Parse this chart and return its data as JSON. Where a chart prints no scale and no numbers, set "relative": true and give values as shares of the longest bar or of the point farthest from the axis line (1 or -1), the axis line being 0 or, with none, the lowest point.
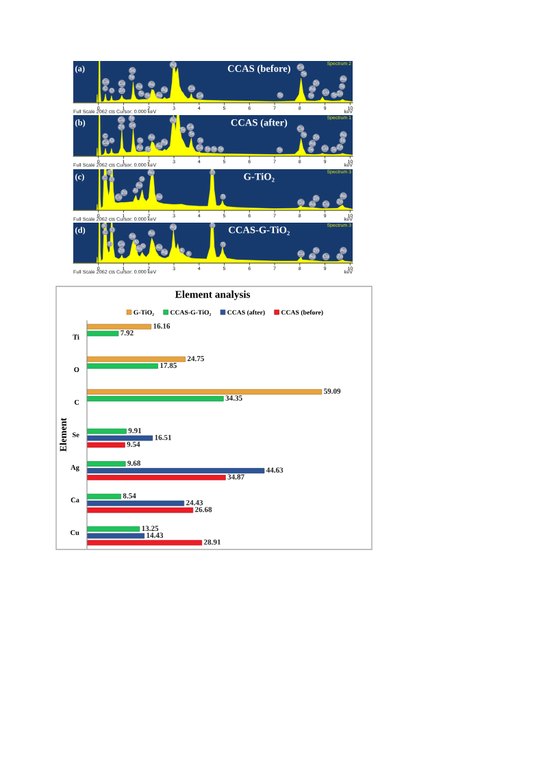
{
  "chart_data": [
    {
      "type": "area",
      "title": "CCAS (before)",
      "xlabel": "keV",
      "relative": true,
      "color": "#ffff00",
      "xlim": [
        -1.0,
        10.1
      ],
      "xticks": [
        0,
        1,
        2,
        3,
        4,
        5,
        6,
        7,
        8,
        9,
        10
      ],
      "tick_labels": "x",
      "x": [
        -1.0,
        -0.07,
        -0.05,
        -0.03,
        0.0,
        0.01,
        0.02,
        0.06,
        0.07,
        0.1,
        0.2,
        0.24,
        0.28,
        0.32,
        0.4,
        0.48,
        0.52,
        0.56,
        0.65,
        0.8,
        0.88,
        0.93,
        0.98,
        1.1,
        1.3,
        1.34,
        1.38,
        1.43,
        1.5,
        1.6,
        1.75,
        1.95,
        2.05,
        2.12,
        2.2,
        2.27,
        2.4,
        2.55,
        2.63,
        2.7,
        2.85,
        2.93,
        2.98,
        3.07,
        3.15,
        3.22,
        3.3,
        3.35,
        3.42,
        3.55,
        3.64,
        3.69,
        3.74,
        3.85,
        4.01,
        4.3,
        5.0,
        6.0,
        7.0,
        7.8,
        7.97,
        8.05,
        8.13,
        8.25,
        8.6,
        8.82,
        8.9,
        8.98,
        9.3,
        9.6,
        9.7,
        9.8,
        10.1
      ],
      "values": [
        0,
        0,
        0.2,
        0,
        0,
        0.3,
        1,
        1,
        0.3,
        0.02,
        0.03,
        0.08,
        0.21,
        0.06,
        0.04,
        0.06,
        0.17,
        0.06,
        0.05,
        0.06,
        0.1,
        0.18,
        0.1,
        0.07,
        0.08,
        0.2,
        0.5,
        0.2,
        0.1,
        0.07,
        0.08,
        0.08,
        0.15,
        0.32,
        0.3,
        0.16,
        0.1,
        0.09,
        0.13,
        0.09,
        0.12,
        0.5,
        1,
        0.7,
        0.83,
        0.4,
        0.28,
        0.25,
        0.18,
        0.1,
        0.12,
        0.22,
        0.12,
        0.08,
        0.07,
        0.06,
        0.05,
        0.04,
        0.03,
        0.04,
        0.2,
        0.59,
        0.25,
        0.05,
        0.04,
        0.06,
        0.14,
        0.06,
        0.04,
        0.05,
        0.08,
        0.05,
        0.03
      ],
      "annotations": [
        "(a)",
        "Spectrum 2",
        "Full Scale 2062 cts Cursor: 0.000 keV",
        {
          "text": "Ca",
          "x": 0.29,
          "y": 0.5
        },
        {
          "text": "C",
          "x": 0.27,
          "y": 0.34
        },
        {
          "text": "O",
          "x": 0.53,
          "y": 0.29
        },
        {
          "text": "Cu",
          "x": 0.93,
          "y": 0.46
        },
        {
          "text": "Zn",
          "x": 0.93,
          "y": 0.29
        },
        {
          "text": "Se",
          "x": 1.35,
          "y": 0.77
        },
        {
          "text": "Te",
          "x": 1.32,
          "y": 0.61
        },
        {
          "text": "Au",
          "x": 1.62,
          "y": 0.39
        },
        {
          "text": "Te",
          "x": 1.7,
          "y": 0.22
        },
        {
          "text": "Te",
          "x": 1.95,
          "y": 0.17
        },
        {
          "text": "Au",
          "x": 2.11,
          "y": 0.44
        },
        {
          "text": "Au",
          "x": 2.41,
          "y": 0.18
        },
        {
          "text": "Ag",
          "x": 2.62,
          "y": 0.31
        },
        {
          "text": "Ag",
          "x": 2.97,
          "y": 0.91
        },
        {
          "text": "Ca",
          "x": 3.7,
          "y": 0.34
        },
        {
          "text": "Ca",
          "x": 4.03,
          "y": 0.17
        },
        {
          "text": "Te",
          "x": 7.22,
          "y": 0.18
        },
        {
          "text": "Cu",
          "x": 8.03,
          "y": 0.85
        },
        {
          "text": "Te",
          "x": 8.16,
          "y": 0.69
        },
        {
          "text": "Zn",
          "x": 8.65,
          "y": 0.47
        },
        {
          "text": "Au",
          "x": 8.5,
          "y": 0.33
        },
        {
          "text": "Te",
          "x": 8.45,
          "y": 0.17
        },
        {
          "text": "Cu",
          "x": 9.03,
          "y": 0.25
        },
        {
          "text": "Te",
          "x": 9.36,
          "y": 0.18
        },
        {
          "text": "Zn",
          "x": 9.59,
          "y": 0.22
        },
        {
          "text": "Te",
          "x": 9.68,
          "y": 0.39
        },
        {
          "text": "Au",
          "x": 9.73,
          "y": 0.57
        }
      ]
    },
    {
      "type": "area",
      "title": "CCAS (after)",
      "xlabel": "keV",
      "relative": true,
      "color": "#ffff00",
      "xlim": [
        -1.0,
        10.1
      ],
      "xticks": [
        0,
        1,
        2,
        3,
        4,
        5,
        6,
        7,
        8,
        9,
        10
      ],
      "tick_labels": "x",
      "x": [
        -1.0,
        -0.07,
        -0.05,
        -0.03,
        0.0,
        0.01,
        0.02,
        0.06,
        0.07,
        0.1,
        0.2,
        0.24,
        0.28,
        0.32,
        0.4,
        0.48,
        0.52,
        0.56,
        0.65,
        0.8,
        0.88,
        0.93,
        0.98,
        1.1,
        1.3,
        1.34,
        1.38,
        1.43,
        1.5,
        1.6,
        1.75,
        1.95,
        2.05,
        2.12,
        2.2,
        2.27,
        2.4,
        2.55,
        2.63,
        2.7,
        2.85,
        2.92,
        2.98,
        3.07,
        3.12,
        3.2,
        3.26,
        3.3,
        3.38,
        3.48,
        3.6,
        3.64,
        3.69,
        3.74,
        3.85,
        3.95,
        4.01,
        4.08,
        4.5,
        5.0,
        6.0,
        7.0,
        7.8,
        7.97,
        8.05,
        8.13,
        8.25,
        8.6,
        8.82,
        8.9,
        8.98,
        9.3,
        9.6,
        9.7,
        9.8,
        10.1
      ],
      "values": [
        0,
        0,
        0.2,
        0,
        0,
        0.3,
        1,
        1,
        0.3,
        0.02,
        0.04,
        0.08,
        0.19,
        0.07,
        0.05,
        0.08,
        0.19,
        0.08,
        0.06,
        0.07,
        0.2,
        0.63,
        0.2,
        0.09,
        0.1,
        0.3,
        0.67,
        0.3,
        0.12,
        0.1,
        0.11,
        0.12,
        0.2,
        0.36,
        0.32,
        0.2,
        0.14,
        0.13,
        0.17,
        0.14,
        0.25,
        0.7,
        1,
        0.6,
        1,
        1,
        0.6,
        0.45,
        0.36,
        0.22,
        0.2,
        0.3,
        0.44,
        0.25,
        0.12,
        0.1,
        0.11,
        0.08,
        0.07,
        0.06,
        0.05,
        0.04,
        0.05,
        0.15,
        0.43,
        0.2,
        0.05,
        0.04,
        0.05,
        0.07,
        0.05,
        0.04,
        0.05,
        0.07,
        0.05,
        0.03
      ],
      "annotations": [
        "(b)",
        "Spectrum 1",
        "Full Scale 2062 cts Cursor: 0.000 keV",
        {
          "text": "C",
          "x": 0.27,
          "y": 0.49
        },
        {
          "text": "Ca",
          "x": 0.29,
          "y": 0.33
        },
        {
          "text": "O",
          "x": 0.53,
          "y": 0.38
        },
        {
          "text": "Cu",
          "x": 0.91,
          "y": 0.88
        },
        {
          "text": "Zn",
          "x": 0.91,
          "y": 0.71
        },
        {
          "text": "Te",
          "x": 1.32,
          "y": 0.92
        },
        {
          "text": "Se",
          "x": 1.35,
          "y": 0.75
        },
        {
          "text": "Te",
          "x": 1.66,
          "y": 0.38
        },
        {
          "text": "Au",
          "x": 1.64,
          "y": 0.21
        },
        {
          "text": "Te",
          "x": 1.97,
          "y": 0.17
        },
        {
          "text": "Au",
          "x": 2.11,
          "y": 0.46
        },
        {
          "text": "Au",
          "x": 2.41,
          "y": 0.25
        },
        {
          "text": "Ag",
          "x": 2.62,
          "y": 0.34
        },
        {
          "text": "Ag",
          "x": 2.97,
          "y": 0.88
        },
        {
          "text": "Te",
          "x": 3.35,
          "y": 0.64
        },
        {
          "text": "Ca",
          "x": 3.65,
          "y": 0.71
        },
        {
          "text": "Te",
          "x": 3.7,
          "y": 0.54
        },
        {
          "text": "Te",
          "x": 4.05,
          "y": 0.38
        },
        {
          "text": "Ca",
          "x": 4.02,
          "y": 0.21
        },
        {
          "text": "Te",
          "x": 4.34,
          "y": 0.17
        },
        {
          "text": "Te",
          "x": 4.59,
          "y": 0.17
        },
        {
          "text": "Te",
          "x": 4.86,
          "y": 0.17
        },
        {
          "text": "Te",
          "x": 7.2,
          "y": 0.15
        },
        {
          "text": "Cu",
          "x": 8.03,
          "y": 0.67
        },
        {
          "text": "Te",
          "x": 8.16,
          "y": 0.52
        },
        {
          "text": "Zn",
          "x": 8.65,
          "y": 0.46
        },
        {
          "text": "Au",
          "x": 8.5,
          "y": 0.31
        },
        {
          "text": "Te",
          "x": 8.44,
          "y": 0.16
        },
        {
          "text": "Cu",
          "x": 9.0,
          "y": 0.19
        },
        {
          "text": "Te",
          "x": 9.35,
          "y": 0.16
        },
        {
          "text": "Zn",
          "x": 9.59,
          "y": 0.22
        },
        {
          "text": "Te",
          "x": 9.7,
          "y": 0.38
        },
        {
          "text": "Au",
          "x": 9.73,
          "y": 0.52
        }
      ]
    },
    {
      "type": "area",
      "title": "G-TiO₂",
      "xlabel": "keV",
      "relative": true,
      "color": "#ffff00",
      "xlim": [
        -1.0,
        10.1
      ],
      "xticks": [
        0,
        1,
        2,
        3,
        4,
        5,
        6,
        7,
        8,
        9,
        10
      ],
      "tick_labels": "x",
      "x": [
        -1.0,
        -0.07,
        -0.05,
        -0.03,
        0.0,
        0.01,
        0.02,
        0.06,
        0.07,
        0.1,
        0.18,
        0.23,
        0.25,
        0.31,
        0.34,
        0.4,
        0.45,
        0.49,
        0.51,
        0.56,
        0.59,
        0.65,
        0.75,
        0.9,
        1.02,
        1.2,
        1.38,
        1.44,
        1.49,
        1.54,
        1.62,
        1.68,
        1.74,
        1.8,
        1.9,
        2.0,
        2.06,
        2.12,
        2.18,
        2.24,
        2.32,
        2.4,
        2.6,
        3.0,
        3.3,
        3.5,
        4.0,
        4.35,
        4.44,
        4.48,
        4.56,
        4.6,
        4.68,
        4.8,
        4.88,
        4.93,
        4.98,
        5.1,
        5.5,
        6.0,
        7.0,
        7.9,
        8.0,
        8.05,
        8.1,
        8.6,
        8.9,
        9.5,
        9.62,
        9.7,
        9.78,
        10.1
      ],
      "values": [
        0,
        0,
        0.15,
        0,
        0,
        0.3,
        1,
        1,
        0.3,
        0.05,
        0.1,
        1,
        1,
        1,
        0.6,
        0.35,
        0.5,
        1,
        1,
        1,
        0.5,
        0.2,
        0.18,
        0.19,
        0.19,
        0.2,
        0.21,
        0.3,
        0.37,
        0.25,
        0.24,
        0.35,
        0.5,
        0.3,
        0.22,
        0.3,
        0.7,
        0.94,
        0.85,
        0.4,
        0.22,
        0.19,
        0.16,
        0.14,
        0.15,
        0.12,
        0.1,
        0.1,
        0.5,
        1,
        1,
        0.5,
        0.12,
        0.11,
        0.15,
        0.24,
        0.14,
        0.09,
        0.07,
        0.06,
        0.04,
        0.05,
        0.09,
        0.11,
        0.08,
        0.06,
        0.04,
        0.05,
        0.1,
        0.13,
        0.07,
        0.03
      ],
      "annotations": [
        "(c)",
        "Spectrum 3",
        "Full Scale 2062 cts Cursor: 0.000 keV",
        {
          "text": "C",
          "x": 0.25,
          "y": 0.79
        },
        {
          "text": "Ti",
          "x": 0.44,
          "y": 0.92
        },
        {
          "text": "O",
          "x": 0.53,
          "y": 0.75
        },
        {
          "text": "Cu",
          "x": 0.8,
          "y": 0.32
        },
        {
          "text": "Zn",
          "x": 1.02,
          "y": 0.43
        },
        {
          "text": "Al",
          "x": 1.47,
          "y": 0.48
        },
        {
          "text": "Au",
          "x": 1.62,
          "y": 0.61
        },
        {
          "text": "Si",
          "x": 1.73,
          "y": 0.76
        },
        {
          "text": "Au",
          "x": 2.09,
          "y": 0.92
        },
        {
          "text": "Au",
          "x": 2.41,
          "y": 0.33
        },
        {
          "text": "Ti",
          "x": 4.53,
          "y": 0.92
        },
        {
          "text": "Ti",
          "x": 4.95,
          "y": 0.33
        },
        {
          "text": "Cu",
          "x": 8.05,
          "y": 0.19
        },
        {
          "text": "Au",
          "x": 8.5,
          "y": 0.15
        },
        {
          "text": "Zn",
          "x": 8.65,
          "y": 0.29
        },
        {
          "text": "Cu",
          "x": 9.04,
          "y": 0.15
        },
        {
          "text": "Zn",
          "x": 9.59,
          "y": 0.21
        },
        {
          "text": "Au",
          "x": 9.73,
          "y": 0.35
        }
      ]
    },
    {
      "type": "area",
      "title": "CCAS-G-TiO₂",
      "xlabel": "keV",
      "relative": true,
      "color": "#ffff00",
      "xlim": [
        -1.0,
        10.1
      ],
      "xticks": [
        0,
        1,
        2,
        3,
        4,
        5,
        6,
        7,
        8,
        9,
        10
      ],
      "tick_labels": "x",
      "x": [
        -1.0,
        -0.07,
        -0.05,
        -0.03,
        0.0,
        0.01,
        0.02,
        0.06,
        0.07,
        0.1,
        0.18,
        0.23,
        0.25,
        0.31,
        0.34,
        0.4,
        0.45,
        0.49,
        0.51,
        0.55,
        0.59,
        0.65,
        0.8,
        0.88,
        0.93,
        0.98,
        1.1,
        1.25,
        1.33,
        1.38,
        1.45,
        1.5,
        1.57,
        1.65,
        1.74,
        1.8,
        1.9,
        2.02,
        2.08,
        2.12,
        2.2,
        2.28,
        2.4,
        2.55,
        2.65,
        2.8,
        2.92,
        2.98,
        3.05,
        3.1,
        3.15,
        3.2,
        3.25,
        3.31,
        3.38,
        3.5,
        3.59,
        3.7,
        3.9,
        4.3,
        4.44,
        4.48,
        4.56,
        4.6,
        4.68,
        4.8,
        4.88,
        4.93,
        4.98,
        5.1,
        5.5,
        6.0,
        7.0,
        7.9,
        8.0,
        8.05,
        8.1,
        8.6,
        8.9,
        9.5,
        9.62,
        9.7,
        9.78,
        10.1
      ],
      "values": [
        0,
        0,
        0.15,
        0,
        0,
        0.3,
        1,
        1,
        0.3,
        0.05,
        0.1,
        1,
        1,
        1,
        0.4,
        0.25,
        0.3,
        0.8,
        1,
        1,
        0.4,
        0.15,
        0.1,
        0.13,
        0.2,
        0.12,
        0.12,
        0.2,
        0.45,
        0.55,
        0.58,
        0.4,
        0.2,
        0.16,
        0.27,
        0.2,
        0.15,
        0.25,
        0.5,
        0.62,
        0.5,
        0.3,
        0.18,
        0.13,
        0.12,
        0.16,
        0.4,
        0.82,
        0.4,
        0.35,
        0.48,
        0.35,
        0.3,
        0.31,
        0.22,
        0.16,
        0.15,
        0.12,
        0.11,
        0.1,
        0.4,
        1,
        1,
        0.4,
        0.15,
        0.15,
        0.25,
        0.4,
        0.25,
        0.12,
        0.08,
        0.07,
        0.05,
        0.05,
        0.12,
        0.15,
        0.08,
        0.06,
        0.04,
        0.04,
        0.06,
        0.08,
        0.05,
        0.03
      ],
      "annotations": [
        "(d)",
        "Spectrum 3",
        "Full Scale 2062 cts Cursor: 0.000 keV",
        {
          "text": "K",
          "x": 0.23,
          "y": 0.92
        },
        {
          "text": "C",
          "x": 0.27,
          "y": 0.76
        },
        {
          "text": "O",
          "x": 0.55,
          "y": 0.82
        },
        {
          "text": "Ti",
          "x": 0.45,
          "y": 0.47
        },
        {
          "text": "Cu",
          "x": 0.91,
          "y": 0.47
        },
        {
          "text": "Zn",
          "x": 0.91,
          "y": 0.31
        },
        {
          "text": "Se",
          "x": 1.35,
          "y": 0.66
        },
        {
          "text": "Al",
          "x": 1.5,
          "y": 0.52
        },
        {
          "text": "Au",
          "x": 1.62,
          "y": 0.36
        },
        {
          "text": "Si",
          "x": 1.77,
          "y": 0.42
        },
        {
          "text": "Au",
          "x": 2.11,
          "y": 0.74
        },
        {
          "text": "Au",
          "x": 2.41,
          "y": 0.39
        },
        {
          "text": "Ag",
          "x": 2.62,
          "y": 0.27
        },
        {
          "text": "Ag",
          "x": 2.97,
          "y": 0.89
        },
        {
          "text": "K",
          "x": 3.32,
          "y": 0.31
        },
        {
          "text": "K",
          "x": 3.59,
          "y": 0.23
        },
        {
          "text": "Ti",
          "x": 4.53,
          "y": 0.93
        },
        {
          "text": "Ti",
          "x": 4.95,
          "y": 0.46
        },
        {
          "text": "Cu",
          "x": 8.05,
          "y": 0.23
        },
        {
          "text": "Au",
          "x": 8.5,
          "y": 0.16
        },
        {
          "text": "Zn",
          "x": 8.65,
          "y": 0.31
        },
        {
          "text": "Cu",
          "x": 9.04,
          "y": 0.16
        },
        {
          "text": "Zn",
          "x": 9.59,
          "y": 0.16
        },
        {
          "text": "Au",
          "x": 9.73,
          "y": 0.31
        }
      ]
    },
    {
      "type": "bar",
      "orientation": "horizontal",
      "title": "Element analysis",
      "ylabel": "Element",
      "categories": [
        "Ti",
        "O",
        "C",
        "Se",
        "Ag",
        "Ca",
        "Cu"
      ],
      "series": [
        {
          "name": "G-TiO₂",
          "color": "#e8a33d",
          "values": [
            16.16,
            24.75,
            59.09,
            null,
            null,
            null,
            null
          ]
        },
        {
          "name": "CCAS-G-TiO₂",
          "color": "#1fc25a",
          "values": [
            7.92,
            17.85,
            34.35,
            9.91,
            9.68,
            8.54,
            13.25
          ]
        },
        {
          "name": "CCAS (after)",
          "color": "#2f5597",
          "values": [
            null,
            null,
            null,
            16.51,
            44.63,
            24.43,
            14.43
          ]
        },
        {
          "name": "CCAS (before)",
          "color": "#ee1c25",
          "values": [
            null,
            null,
            null,
            9.54,
            34.87,
            26.68,
            28.91
          ]
        }
      ],
      "data_labels": true,
      "legend": "top",
      "tick_labels": "y"
    }
  ]
}
